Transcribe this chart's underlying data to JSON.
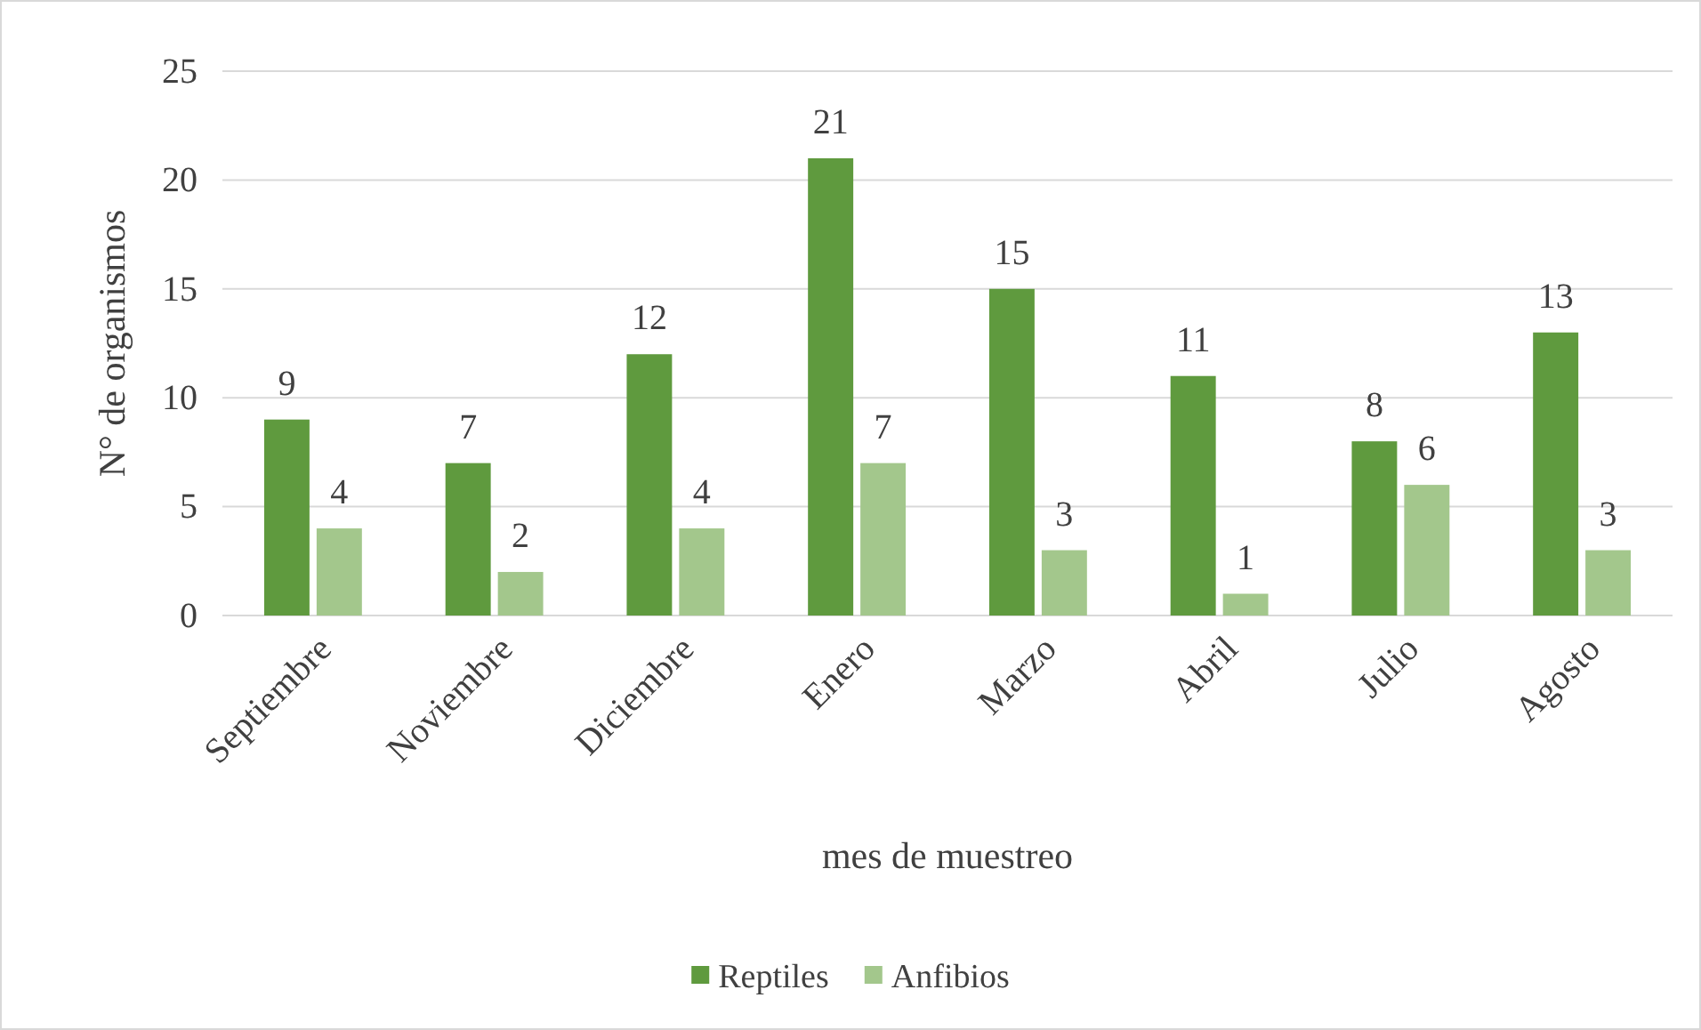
{
  "chart_data": {
    "type": "bar",
    "xlabel": "mes de muestreo",
    "ylabel": "N° de organismos",
    "categories": [
      "Septiembre",
      "Noviembre",
      "Diciembre",
      "Enero",
      "Marzo",
      "Abril",
      "Julio",
      "Agosto"
    ],
    "series": [
      {
        "name": "Reptiles",
        "color": "#5f9a3e",
        "values": [
          9,
          7,
          12,
          21,
          15,
          11,
          8,
          13
        ]
      },
      {
        "name": "Anfibios",
        "color": "#a3c78c",
        "values": [
          4,
          2,
          4,
          7,
          3,
          1,
          6,
          3
        ]
      }
    ],
    "ylim": [
      0,
      25
    ],
    "yticks": [
      0,
      5,
      10,
      15,
      20,
      25
    ],
    "grid": "y",
    "legend": "bottom",
    "data_labels": true
  }
}
